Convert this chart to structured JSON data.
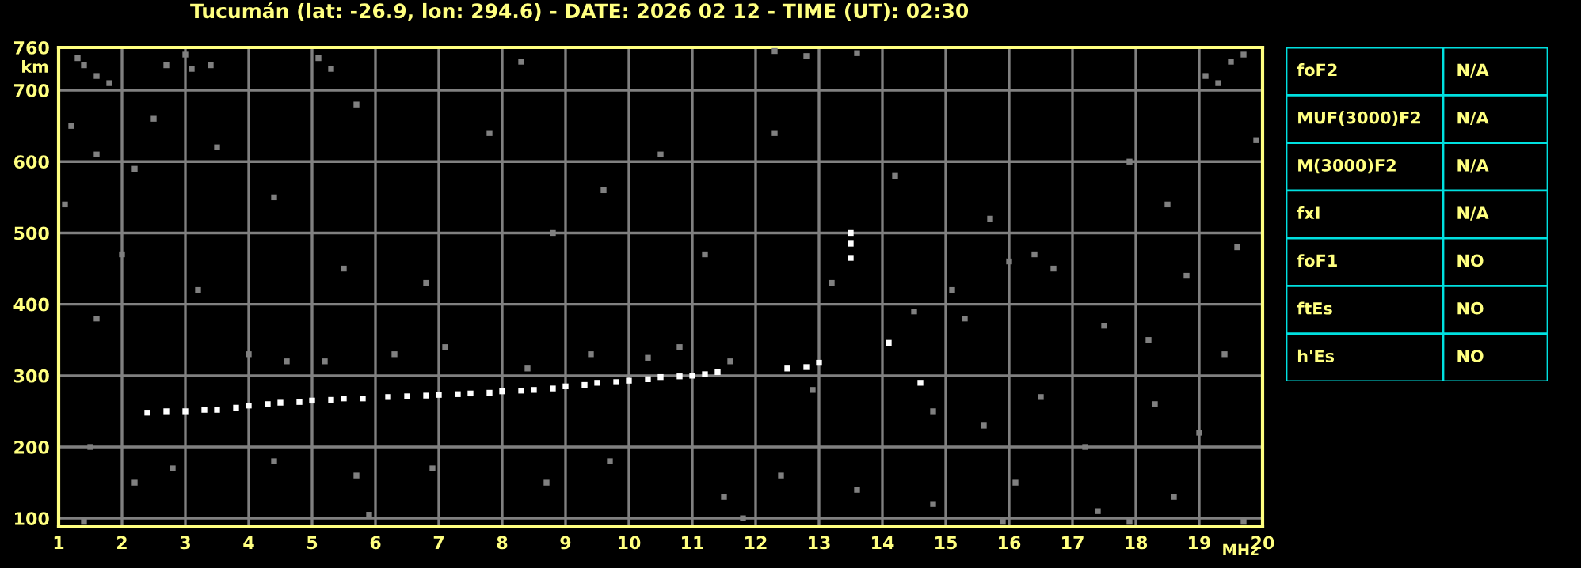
{
  "chart_data": [
    {
      "type": "scatter",
      "title": "Tucumán (lat: -26.9, lon: 294.6) - DATE: 2026 02 12 - TIME (UT): 02:30",
      "xlabel": "MHz",
      "ylabel": "km",
      "xlim": [
        1,
        20
      ],
      "ylim": [
        88,
        760
      ],
      "xticks": [
        1,
        2,
        3,
        4,
        5,
        6,
        7,
        8,
        9,
        10,
        11,
        12,
        13,
        14,
        15,
        16,
        17,
        18,
        19,
        20
      ],
      "yticks": [
        100,
        200,
        300,
        400,
        500,
        600,
        700,
        760
      ],
      "grid": true,
      "legend": false,
      "marker": "square",
      "series": [
        {
          "color": "#ffffff",
          "x": [
            2.4,
            2.7,
            3.0,
            3.3,
            3.5,
            3.8,
            4.0,
            4.3,
            4.5,
            4.8,
            5.0,
            5.3,
            5.5,
            5.8,
            6.2,
            6.5,
            6.8,
            7.0,
            7.3,
            7.5,
            7.8,
            8.0,
            8.3,
            8.5,
            8.8,
            9.0,
            9.3,
            9.5,
            9.8,
            10.0,
            10.3,
            10.5,
            10.8,
            11.0,
            11.2,
            11.4,
            12.5,
            12.8,
            13.0,
            13.5,
            13.5,
            13.5,
            14.1,
            14.6
          ],
          "values": [
            248,
            250,
            250,
            252,
            252,
            255,
            258,
            260,
            262,
            263,
            265,
            266,
            268,
            268,
            270,
            271,
            272,
            273,
            274,
            275,
            276,
            278,
            279,
            280,
            282,
            285,
            287,
            290,
            291,
            293,
            295,
            298,
            299,
            300,
            302,
            305,
            310,
            312,
            318,
            465,
            485,
            500,
            346,
            290
          ]
        },
        {
          "color": "#808080",
          "x": [
            1.3,
            1.4,
            1.6,
            1.8,
            2.7,
            3.0,
            3.1,
            3.4,
            5.1,
            5.3,
            8.3,
            12.3,
            12.8,
            13.6,
            19.5,
            19.7,
            19.1,
            19.3,
            1.2,
            1.6,
            2.5,
            1.1,
            2.2,
            3.5,
            4.4,
            5.7,
            7.8,
            9.6,
            10.5,
            12.3,
            14.2,
            15.7,
            16.4,
            16.7,
            17.9,
            18.5,
            19.6,
            19.9,
            2.0,
            5.5,
            6.8,
            8.8,
            11.2,
            13.2,
            15.1,
            18.8,
            16.0,
            14.5,
            15.3,
            17.5,
            18.2,
            19.4,
            1.6,
            3.2,
            4.0,
            4.6,
            5.2,
            6.3,
            7.1,
            8.4,
            9.4,
            10.3,
            10.8,
            11.6,
            12.9,
            14.8,
            15.6,
            16.5,
            17.2,
            18.3,
            19.0,
            1.5,
            2.2,
            2.8,
            4.4,
            5.7,
            6.9,
            8.7,
            9.7,
            11.5,
            12.4,
            13.6,
            14.8,
            16.1,
            17.4,
            18.6,
            19.7,
            1.4,
            5.9,
            11.8,
            15.9,
            17.9
          ],
          "values": [
            745,
            735,
            720,
            710,
            735,
            750,
            730,
            735,
            745,
            730,
            740,
            755,
            748,
            752,
            740,
            750,
            720,
            710,
            650,
            610,
            660,
            540,
            590,
            620,
            550,
            680,
            640,
            560,
            610,
            640,
            580,
            520,
            470,
            450,
            600,
            540,
            480,
            630,
            470,
            450,
            430,
            500,
            470,
            430,
            420,
            440,
            460,
            390,
            380,
            370,
            350,
            330,
            380,
            420,
            330,
            320,
            320,
            330,
            340,
            310,
            330,
            325,
            340,
            320,
            280,
            250,
            230,
            270,
            200,
            260,
            220,
            200,
            150,
            170,
            180,
            160,
            170,
            150,
            180,
            130,
            160,
            140,
            120,
            150,
            110,
            130,
            95,
            95,
            105,
            100,
            95,
            95
          ]
        }
      ]
    },
    {
      "type": "other",
      "annotations": [
        "foF2",
        "N/A",
        "MUF(3000)F2",
        "N/A",
        "M(3000)F2",
        "N/A",
        "fxI",
        "N/A",
        "foF1",
        "NO",
        "ftEs",
        "NO",
        "h'Es",
        "NO"
      ]
    }
  ]
}
